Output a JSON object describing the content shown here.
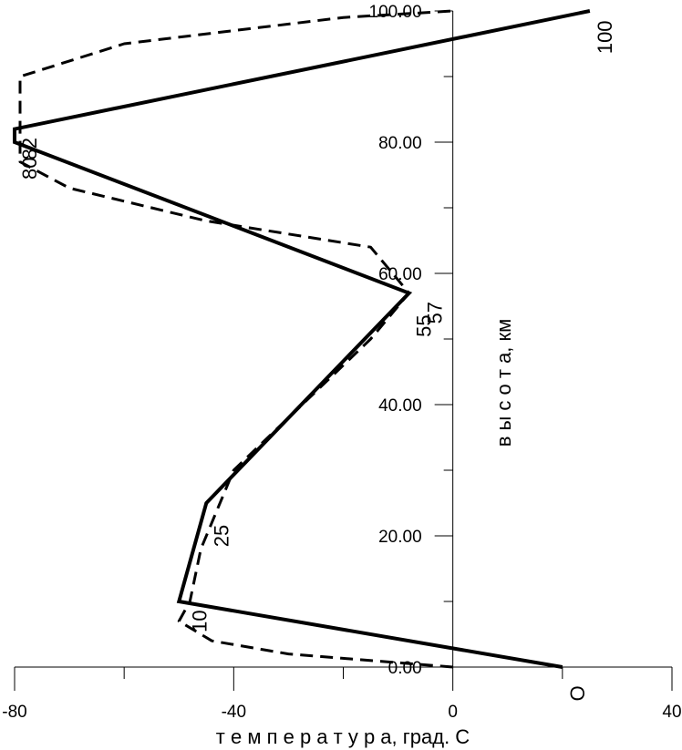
{
  "chart_data": {
    "type": "line",
    "xlabel": "т е м п е р а т у р а,  град. С",
    "ylabel": "в ы с о т а, км",
    "xlim": [
      -80,
      40
    ],
    "ylim": [
      0,
      100
    ],
    "x_ticks": [
      -80,
      -40,
      0,
      40
    ],
    "x_tick_labels": [
      "-80",
      "-40",
      "0",
      "40"
    ],
    "y_ticks": [
      0,
      20,
      40,
      60,
      80,
      100
    ],
    "y_tick_labels": [
      "0.00",
      "20.00",
      "40.00",
      "60.00",
      "80.00",
      "100.00"
    ],
    "grid": false,
    "series": [
      {
        "style": "solid",
        "points": [
          {
            "t": 20,
            "h": 0
          },
          {
            "t": -50,
            "h": 10
          },
          {
            "t": -45,
            "h": 25
          },
          {
            "t": -8,
            "h": 57
          },
          {
            "t": -80,
            "h": 80
          },
          {
            "t": -80,
            "h": 82
          },
          {
            "t": 25,
            "h": 100
          }
        ]
      },
      {
        "style": "dashed",
        "points": [
          {
            "t": 0,
            "h": 0
          },
          {
            "t": -30,
            "h": 2
          },
          {
            "t": -44,
            "h": 4
          },
          {
            "t": -50,
            "h": 7
          },
          {
            "t": -48,
            "h": 10
          },
          {
            "t": -46,
            "h": 18
          },
          {
            "t": -40,
            "h": 30
          },
          {
            "t": -25,
            "h": 42
          },
          {
            "t": -15,
            "h": 50
          },
          {
            "t": -8,
            "h": 57
          },
          {
            "t": -15,
            "h": 64
          },
          {
            "t": -30,
            "h": 66
          },
          {
            "t": -45,
            "h": 68
          },
          {
            "t": -70,
            "h": 73
          },
          {
            "t": -79,
            "h": 77
          },
          {
            "t": -79,
            "h": 90
          },
          {
            "t": -60,
            "h": 95
          },
          {
            "t": -20,
            "h": 99
          },
          {
            "t": 0,
            "h": 100
          }
        ]
      }
    ],
    "point_labels": [
      {
        "text": "O",
        "t": 24,
        "h": -4
      },
      {
        "text": "10",
        "t": -45,
        "h": 7
      },
      {
        "text": "25",
        "t": -41,
        "h": 20
      },
      {
        "text": "55",
        "t": -4,
        "h": 52
      },
      {
        "text": "57",
        "t": -2,
        "h": 54
      },
      {
        "text": "80",
        "t": -76,
        "h": 76
      },
      {
        "text": "82",
        "t": -76,
        "h": 79
      },
      {
        "text": "100",
        "t": 29,
        "h": 96
      }
    ]
  }
}
